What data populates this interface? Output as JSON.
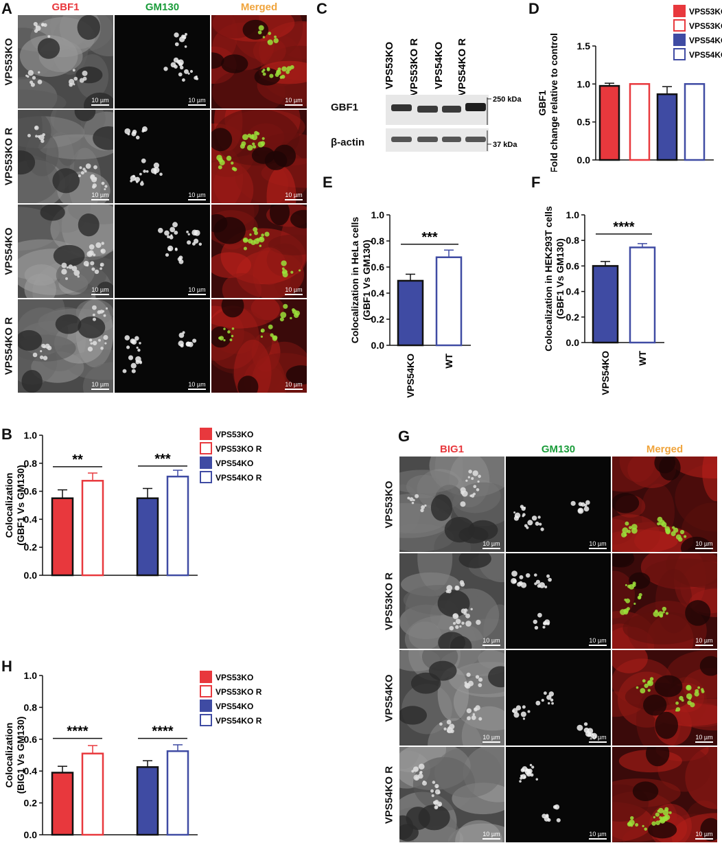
{
  "panels": {
    "A": "A",
    "B": "B",
    "C": "C",
    "D": "D",
    "E": "E",
    "F": "F",
    "G": "G",
    "H": "H"
  },
  "colors": {
    "vps53": "#e8383d",
    "vps54": "#3f4ba3",
    "gbf1_label": "#e8383d",
    "gm130_label": "#1a9c3a",
    "merged_label": "#f0a43c"
  },
  "panelA": {
    "channels": [
      "GBF1",
      "GM130",
      "Merged"
    ],
    "rows": [
      "VPS53KO",
      "VPS53KO R",
      "VPS54KO",
      "VPS54KO R"
    ],
    "scalebar": "10 µm"
  },
  "panelG": {
    "channels": [
      "BIG1",
      "GM130",
      "Merged"
    ],
    "rows": [
      "VPS53KO",
      "VPS53KO R",
      "VPS54KO",
      "VPS54KO R"
    ],
    "scalebar": "10 µm"
  },
  "panelC": {
    "lanes": [
      "VPS53KO",
      "VPS53KO R",
      "VPS54KO",
      "VPS54KO R"
    ],
    "blots": [
      "GBF1",
      "β-actin"
    ],
    "markers": [
      "250 kDa",
      "37 kDa"
    ]
  },
  "legend": {
    "items": [
      "VPS53KO",
      "VPS53KO R",
      "VPS54KO",
      "VPS54KO R"
    ]
  },
  "chart_data": [
    {
      "id": "B",
      "type": "bar",
      "categories": [
        "VPS53KO",
        "VPS53KO R",
        "VPS54KO",
        "VPS54KO R"
      ],
      "values": [
        0.55,
        0.675,
        0.55,
        0.705
      ],
      "errors": [
        0.06,
        0.055,
        0.07,
        0.045
      ],
      "ylabel": "Colocalization\n(GBF1 Vs GM130)",
      "ylim": [
        0,
        1.0
      ],
      "yticks": [
        "0.0",
        "0.2",
        "0.4",
        "0.6",
        "0.8",
        "1.0"
      ],
      "significance": [
        "**",
        "***"
      ]
    },
    {
      "id": "D",
      "type": "bar",
      "categories": [
        "VPS53KO",
        "VPS53KO R",
        "VPS54KO",
        "VPS54KO R"
      ],
      "values": [
        0.975,
        1.0,
        0.865,
        1.0
      ],
      "errors": [
        0.035,
        0.0,
        0.1,
        0.0
      ],
      "ylabel": "GBF1\nFold change relative to control",
      "ylim": [
        0,
        1.5
      ],
      "yticks": [
        "0.0",
        "0.5",
        "1.0",
        "1.5"
      ]
    },
    {
      "id": "E",
      "type": "bar",
      "categories": [
        "VPS54KO",
        "WT"
      ],
      "values": [
        0.495,
        0.675
      ],
      "errors": [
        0.05,
        0.055
      ],
      "ylabel": "Colocalization in HeLa cells\n(GBF1 Vs GM130)",
      "ylim": [
        0,
        1.0
      ],
      "yticks": [
        "0.0",
        "0.2",
        "0.4",
        "0.6",
        "0.8",
        "1.0"
      ],
      "significance": [
        "***"
      ]
    },
    {
      "id": "F",
      "type": "bar",
      "categories": [
        "VPS54KO",
        "WT"
      ],
      "values": [
        0.6,
        0.745
      ],
      "errors": [
        0.035,
        0.03
      ],
      "ylabel": "Colocalization in HEK293T cells\n(GBF1 Vs GM130)",
      "ylim": [
        0,
        1.0
      ],
      "yticks": [
        "0.0",
        "0.2",
        "0.4",
        "0.6",
        "0.8",
        "1.0"
      ],
      "significance": [
        "****"
      ]
    },
    {
      "id": "H",
      "type": "bar",
      "categories": [
        "VPS53KO",
        "VPS53KO R",
        "VPS54KO",
        "VPS54KO R"
      ],
      "values": [
        0.39,
        0.51,
        0.425,
        0.525
      ],
      "errors": [
        0.04,
        0.05,
        0.04,
        0.04
      ],
      "ylabel": "Colocalization\n(BIG1 Vs GM130)",
      "ylim": [
        0,
        1.0
      ],
      "yticks": [
        "0.0",
        "0.2",
        "0.4",
        "0.6",
        "0.8",
        "1.0"
      ],
      "significance": [
        "****",
        "****"
      ]
    }
  ]
}
